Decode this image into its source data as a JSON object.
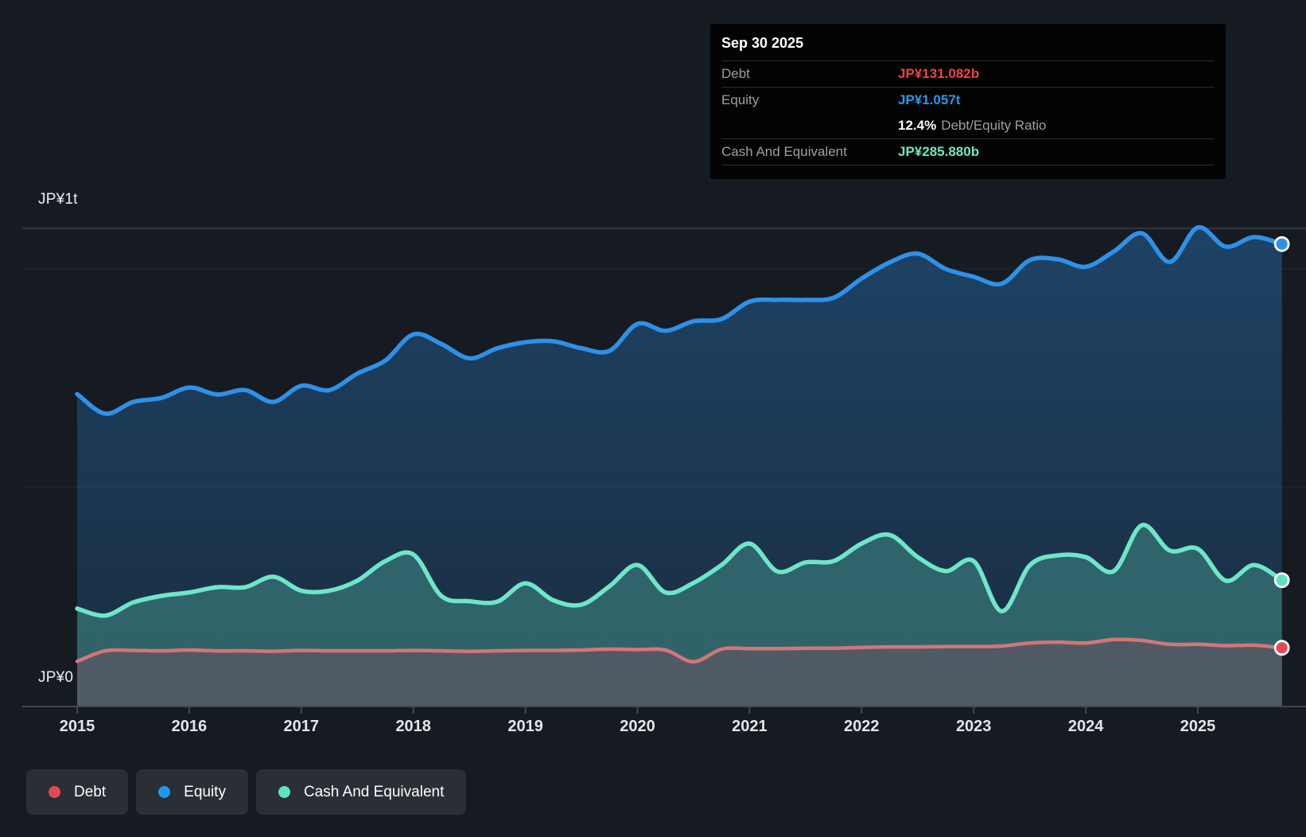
{
  "y_axis": {
    "top_label": "JP¥1t",
    "zero_label": "JP¥0"
  },
  "x_axis": {
    "ticks": [
      "2015",
      "2016",
      "2017",
      "2018",
      "2019",
      "2020",
      "2021",
      "2022",
      "2023",
      "2024",
      "2025"
    ]
  },
  "tooltip": {
    "date": "Sep 30 2025",
    "debt_label": "Debt",
    "debt_value": "JP¥131.082b",
    "equity_label": "Equity",
    "equity_value": "JP¥1.057t",
    "ratio_value": "12.4%",
    "ratio_label": "Debt/Equity Ratio",
    "cash_label": "Cash And Equivalent",
    "cash_value": "JP¥285.880b"
  },
  "legend": [
    {
      "label": "Debt",
      "color": "#e5494f"
    },
    {
      "label": "Equity",
      "color": "#2196f3"
    },
    {
      "label": "Cash And Equivalent",
      "color": "#5fe3c0"
    }
  ],
  "colors": {
    "background": "#161b22",
    "axis_line": "#42474f",
    "top_border": "#3a3f46",
    "value_gridline": "rgba(255,255,255,0.055)",
    "tick_label": "#e3e6e9",
    "marker_ring": "#ffffff"
  },
  "chart_data": {
    "type": "area",
    "title": "Debt to Equity History",
    "unit": "JP¥ trillions",
    "ylim": [
      0,
      1.1
    ],
    "y_gridlines": [
      0,
      0.5,
      1.0
    ],
    "grid": true,
    "legend_position": "bottom-left",
    "x": [
      2015.0,
      2015.25,
      2015.5,
      2015.75,
      2016.0,
      2016.25,
      2016.5,
      2016.75,
      2017.0,
      2017.25,
      2017.5,
      2017.75,
      2018.0,
      2018.25,
      2018.5,
      2018.75,
      2019.0,
      2019.25,
      2019.5,
      2019.75,
      2020.0,
      2020.25,
      2020.5,
      2020.75,
      2021.0,
      2021.25,
      2021.5,
      2021.75,
      2022.0,
      2022.25,
      2022.5,
      2022.75,
      2023.0,
      2023.25,
      2023.5,
      2023.75,
      2024.0,
      2024.25,
      2024.5,
      2024.75,
      2025.0,
      2025.25,
      2025.5,
      2025.75
    ],
    "series": [
      {
        "name": "Equity",
        "line_color": "#2e91e9",
        "marker_color": "#2e91e9",
        "line_width": 5.5,
        "fill_color": "#2e91e9",
        "fill_top": 0.34,
        "fill_bottom": 0.15,
        "values": [
          0.713,
          0.668,
          0.695,
          0.704,
          0.728,
          0.712,
          0.722,
          0.695,
          0.732,
          0.722,
          0.76,
          0.79,
          0.85,
          0.828,
          0.795,
          0.818,
          0.832,
          0.834,
          0.818,
          0.812,
          0.874,
          0.858,
          0.88,
          0.885,
          0.925,
          0.929,
          0.929,
          0.934,
          0.978,
          1.015,
          1.035,
          1.0,
          0.982,
          0.966,
          1.02,
          1.022,
          1.005,
          1.04,
          1.082,
          1.016,
          1.095,
          1.051,
          1.073,
          1.057
        ]
      },
      {
        "name": "Cash And Equivalent",
        "line_color": "#6ee6c8",
        "marker_color": "#5fe3c0",
        "line_width": 5.5,
        "fill_color": "#66e2c2",
        "fill_top": 0.22,
        "fill_bottom": 0.3,
        "values": [
          0.221,
          0.205,
          0.235,
          0.25,
          0.258,
          0.27,
          0.27,
          0.294,
          0.262,
          0.262,
          0.285,
          0.33,
          0.345,
          0.25,
          0.238,
          0.237,
          0.279,
          0.24,
          0.23,
          0.272,
          0.321,
          0.258,
          0.28,
          0.321,
          0.37,
          0.306,
          0.327,
          0.33,
          0.37,
          0.39,
          0.339,
          0.307,
          0.33,
          0.215,
          0.32,
          0.343,
          0.339,
          0.307,
          0.412,
          0.354,
          0.358,
          0.285,
          0.321,
          0.286
        ]
      },
      {
        "name": "Debt",
        "line_color": "#d4757a",
        "marker_color": "#e5494f",
        "line_width": 4.5,
        "fill_color": "#5a5864",
        "fill_top": 0.85,
        "fill_bottom": 0.76,
        "values": [
          0.1,
          0.124,
          0.125,
          0.124,
          0.126,
          0.124,
          0.124,
          0.123,
          0.125,
          0.124,
          0.124,
          0.124,
          0.125,
          0.124,
          0.123,
          0.124,
          0.125,
          0.125,
          0.126,
          0.128,
          0.127,
          0.126,
          0.099,
          0.128,
          0.129,
          0.129,
          0.13,
          0.13,
          0.132,
          0.133,
          0.133,
          0.134,
          0.134,
          0.135,
          0.142,
          0.144,
          0.142,
          0.15,
          0.148,
          0.139,
          0.139,
          0.136,
          0.137,
          0.131
        ]
      }
    ]
  }
}
